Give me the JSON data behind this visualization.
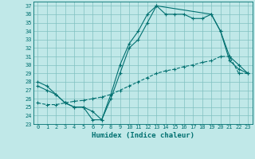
{
  "xlabel": "Humidex (Indice chaleur)",
  "bg_color": "#c0e8e8",
  "grid_color": "#80c0c0",
  "line_color": "#007070",
  "xlim": [
    -0.5,
    23.5
  ],
  "ylim": [
    23,
    37.5
  ],
  "yticks": [
    23,
    24,
    25,
    26,
    27,
    28,
    29,
    30,
    31,
    32,
    33,
    34,
    35,
    36,
    37
  ],
  "xticks": [
    0,
    1,
    2,
    3,
    4,
    5,
    6,
    7,
    8,
    9,
    10,
    11,
    12,
    13,
    14,
    15,
    16,
    17,
    18,
    19,
    20,
    21,
    22,
    23
  ],
  "series1_x": [
    0,
    1,
    2,
    3,
    4,
    5,
    6,
    7,
    8,
    9,
    10,
    11,
    12,
    13,
    14,
    15,
    16,
    17,
    18,
    19,
    20,
    21,
    22,
    23
  ],
  "series1_y": [
    28.0,
    27.5,
    26.5,
    25.5,
    25.0,
    25.0,
    23.5,
    23.5,
    26.0,
    29.0,
    32.0,
    33.0,
    35.0,
    37.0,
    36.0,
    36.0,
    36.0,
    35.5,
    35.5,
    36.0,
    34.0,
    30.5,
    29.5,
    29.0
  ],
  "series2_x": [
    0,
    1,
    2,
    3,
    4,
    5,
    6,
    7,
    8,
    9,
    10,
    11,
    12,
    13,
    14,
    15,
    16,
    17,
    18,
    19,
    20,
    21,
    22,
    23
  ],
  "series2_y": [
    25.5,
    25.3,
    25.3,
    25.5,
    25.7,
    25.8,
    26.0,
    26.2,
    26.5,
    27.0,
    27.5,
    28.0,
    28.5,
    29.0,
    29.3,
    29.5,
    29.8,
    30.0,
    30.3,
    30.5,
    31.0,
    31.0,
    29.0,
    29.0
  ],
  "series3_x": [
    0,
    1,
    2,
    3,
    4,
    5,
    6,
    7,
    8,
    9,
    10,
    11,
    12,
    13,
    19,
    20,
    21,
    22,
    23
  ],
  "series3_y": [
    27.5,
    27.0,
    26.5,
    25.5,
    25.0,
    25.0,
    24.5,
    23.5,
    26.5,
    30.0,
    32.5,
    34.0,
    36.0,
    37.0,
    36.0,
    34.0,
    31.0,
    30.0,
    29.0
  ]
}
